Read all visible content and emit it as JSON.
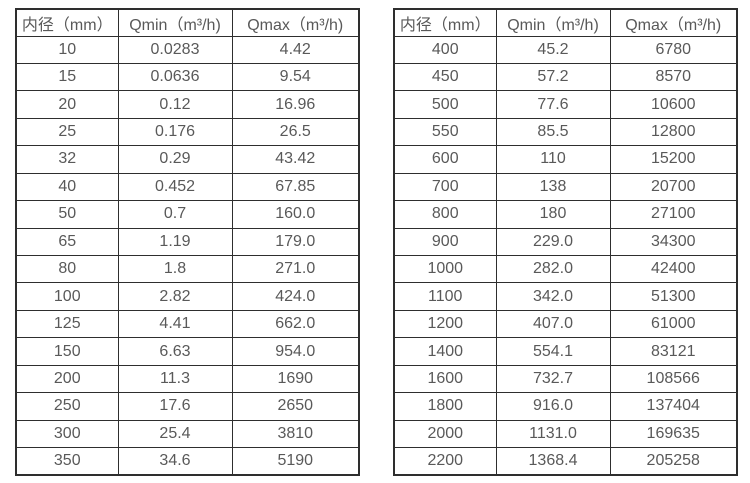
{
  "page": {
    "background_color": "#ffffff",
    "border_color": "#2e2e2e",
    "text_color": "#595959"
  },
  "tables": [
    {
      "name": "flow-rate-table-small-diameters",
      "headers": [
        "内径（mm）",
        "Qmin（m³/h)",
        "Qmax（m³/h)"
      ],
      "rows": [
        [
          "10",
          "0.0283",
          "4.42"
        ],
        [
          "15",
          "0.0636",
          "9.54"
        ],
        [
          "20",
          "0.12",
          "16.96"
        ],
        [
          "25",
          "0.176",
          "26.5"
        ],
        [
          "32",
          "0.29",
          "43.42"
        ],
        [
          "40",
          "0.452",
          "67.85"
        ],
        [
          "50",
          "0.7",
          "160.0"
        ],
        [
          "65",
          "1.19",
          "179.0"
        ],
        [
          "80",
          "1.8",
          "271.0"
        ],
        [
          "100",
          "2.82",
          "424.0"
        ],
        [
          "125",
          "4.41",
          "662.0"
        ],
        [
          "150",
          "6.63",
          "954.0"
        ],
        [
          "200",
          "11.3",
          "1690"
        ],
        [
          "250",
          "17.6",
          "2650"
        ],
        [
          "300",
          "25.4",
          "3810"
        ],
        [
          "350",
          "34.6",
          "5190"
        ]
      ]
    },
    {
      "name": "flow-rate-table-large-diameters",
      "headers": [
        "内径（mm）",
        "Qmin（m³/h)",
        "Qmax（m³/h)"
      ],
      "rows": [
        [
          "400",
          "45.2",
          "6780"
        ],
        [
          "450",
          "57.2",
          "8570"
        ],
        [
          "500",
          "77.6",
          "10600"
        ],
        [
          "550",
          "85.5",
          "12800"
        ],
        [
          "600",
          "110",
          "15200"
        ],
        [
          "700",
          "138",
          "20700"
        ],
        [
          "800",
          "180",
          "27100"
        ],
        [
          "900",
          "229.0",
          "34300"
        ],
        [
          "1000",
          "282.0",
          "42400"
        ],
        [
          "1100",
          "342.0",
          "51300"
        ],
        [
          "1200",
          "407.0",
          "61000"
        ],
        [
          "1400",
          "554.1",
          "83121"
        ],
        [
          "1600",
          "732.7",
          "108566"
        ],
        [
          "1800",
          "916.0",
          "137404"
        ],
        [
          "2000",
          "1131.0",
          "169635"
        ],
        [
          "2200",
          "1368.4",
          "205258"
        ]
      ]
    }
  ]
}
